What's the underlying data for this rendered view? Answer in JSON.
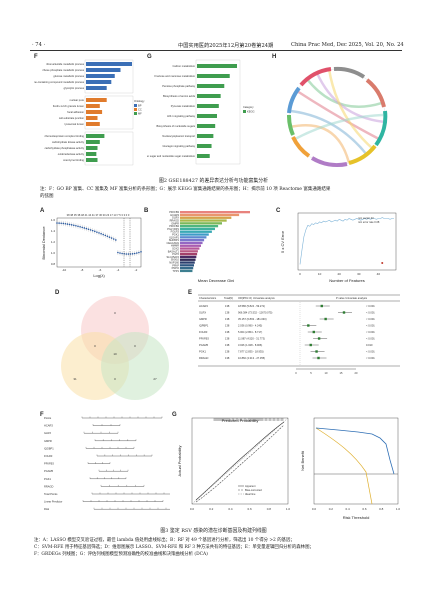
{
  "header": {
    "page_number": "· 74 ·",
    "journal_cn": "中国实用医药2025年12月第20卷第24期",
    "journal_en": "China Prac Med, Dec 2025, Vol. 20, No. 24"
  },
  "figure2": {
    "caption_title": "图2   GSE188427 的差异表达分析与功能富集分析",
    "caption_note_1": "注：F：GO BP 富集、CC 富集及 MF 富集分析的条形图；G：展示 KEGG 富集通路结果的条形图；H：揭示前 10 项 Reactome 富集通路结果",
    "caption_note_2": "的弦图",
    "panels": {
      "F": {
        "letter": "F",
        "legend_title": "Ontology",
        "legend": [
          "BP",
          "CC",
          "MF"
        ],
        "bp_terms": [
          "ribonucleotide metabolic process",
          "ribose phosphate metabolic process",
          "glucose metabolic process",
          "purine-containing compound metabolic process",
          "glycolytic process"
        ],
        "cc_terms": [
          "nuclear pore",
          "ficolin-1-rich granule lumen",
          "focal adhesion",
          "cell-substrate junction",
          "lysosomal lumen"
        ],
        "mf_terms": [
          "ribonucleoprotein complex binding",
          "carbohydrate kinase activity",
          "carbohydrate phosphatase activity",
          "oxidoreductase activity",
          "coenzyme binding"
        ],
        "bp_values": [
          40,
          30,
          25,
          22,
          18
        ],
        "cc_values": [
          18,
          12,
          14,
          10,
          12
        ],
        "mf_values": [
          16,
          12,
          10,
          9,
          10
        ]
      },
      "G": {
        "letter": "G",
        "legend_title": "Category",
        "legend": [
          "KEGG"
        ],
        "terms": [
          "Carbon metabolism",
          "Fructose and mannose metabolism",
          "Pentose phosphate pathway",
          "Biosynthesis of amino acids",
          "Pyruvate metabolism",
          "HIF-1 signaling pathway",
          "Biosynthesis of nucleotide sugars",
          "Nucleocytoplasmic transport",
          "Glucagon signaling pathway",
          "Amino sugar and nucleotide sugar metabolism"
        ],
        "values": [
          22,
          18,
          15,
          13,
          12,
          11,
          10,
          9,
          8,
          7
        ]
      },
      "H": {
        "letter": "H"
      }
    }
  },
  "figure3": {
    "caption_title": "图3   鉴定 RSV 感染的潜在诊断基因及构建列线图",
    "caption_note_1": "注：A：LASSO 模型交叉验证过程，最佳 lambda 值处用虚线标出；B：RF 对 49 个基因进行分析，筛选出 10 个得分 >2 的基因；",
    "caption_note_2": "C：SVM-RFE 用于特征基因筛选；D：维恩图展示 LASSO、SVM-RFE 和 RF 3 种方法共有的特征基因；E：单变量逻辑回归分析的森林图；",
    "caption_note_3": "F：GRDEGs 列线图；G：评估列线图模型预测准确性的校准曲线和决策曲线分析 (DCA)",
    "panels": {
      "A": {
        "letter": "A",
        "top_ticks": "38 38 35 38 48 41 44 41 37 36 30 23 17 13 7 5 3 3 0 0",
        "xlabel": "Log(λ)",
        "ylabel": "Binomial Deviance",
        "x_ticks": [
          "-10",
          "-8",
          "-6",
          "-4",
          "-2"
        ],
        "y_ticks": [
          "1.6",
          "1.4",
          "1.2",
          "1.0",
          "0.8"
        ]
      },
      "B": {
        "letter": "B",
        "xlabel": "Mean Decrease Gini",
        "genes": [
          "PFKFB3",
          "HCAR3",
          "GLRX",
          "RRAGD",
          "GMPR",
          "PFKFB4",
          "PGLYRP1",
          "FOLR3",
          "PGK1",
          "IQGAP1",
          "SHKBP1",
          "CEACAM1",
          "HMMR",
          "SOX2",
          "BASALT1",
          "PGT6",
          "SLC25A15",
          "SNX10",
          "NUP160",
          "PFKP",
          "PNPO",
          "TPP1"
        ],
        "values": [
          9.0,
          7.6,
          6.6,
          6.0,
          5.4,
          4.9,
          4.5,
          4.1,
          3.7,
          3.4,
          3.1,
          2.9,
          2.7,
          2.5,
          2.3,
          2.2,
          2.1,
          2.0,
          1.9,
          1.8,
          1.7,
          1.6
        ]
      },
      "C": {
        "letter": "C",
        "legend_1": "min vector  43",
        "legend_2": "min error rate  0.08",
        "ylabel": "5 x CV Error",
        "xlabel": "Number of Features",
        "x_ticks": [
          "0",
          "10",
          "20",
          "30",
          "40"
        ]
      },
      "D": {
        "letter": "D",
        "labels": [
          "0",
          "0",
          "0",
          "10",
          "31",
          "27",
          "0"
        ]
      },
      "E": {
        "letter": "E",
        "headers": [
          "Characteristics",
          "Total(N)",
          "OR(95% CI) Univariate analysis",
          "P value Univariate analysis"
        ],
        "rows": [
          {
            "gene": "HCAR3",
            "n": "138",
            "or": "18.586 (5.824 - 59.271)",
            "p": "< 0.001"
          },
          {
            "gene": "GLRX",
            "n": "138",
            "or": "966.384 (73.532 - 12670.075)",
            "p": "< 0.001"
          },
          {
            "gene": "GMPR",
            "n": "138",
            "or": "35.157 (6.893 - 181.030)",
            "p": "< 0.001"
          },
          {
            "gene": "IQPBP1",
            "n": "138",
            "or": "2.036 (0.990 - 4.245)",
            "p": "< 0.001"
          },
          {
            "gene": "FOLR3",
            "n": "138",
            "or": "5.004 (2.864 - 8.717)",
            "p": "< 0.001"
          },
          {
            "gene": "PFKFB3",
            "n": "138",
            "or": "11.987 (4.520 - 31.773)",
            "p": "< 0.001"
          },
          {
            "gene": "PGAM5",
            "n": "138",
            "or": "3.026 (1.028 - 8.906)",
            "p": "0.010"
          },
          {
            "gene": "PGK1",
            "n": "138",
            "or": "7.877 (2.835 - 18.935)",
            "p": "< 0.001"
          },
          {
            "gene": "RRAGD",
            "n": "138",
            "or": "10.860 (4.313 - 27.355)",
            "p": "< 0.001"
          }
        ],
        "axis_ticks": [
          "0",
          "5",
          "10",
          "15",
          "20"
        ]
      },
      "F": {
        "letter": "F",
        "rows": [
          "Points",
          "HCAR3",
          "GLRX",
          "GMPR",
          "IQGBP1",
          "FOLR3",
          "PFKFB3",
          "PGAM5",
          "PGK1",
          "RRAGD",
          "Total Points",
          "Linear Predictor",
          "Risk"
        ]
      },
      "G": {
        "letter": "G",
        "xlabel": "Predicted Probability",
        "ylabel": "Actual Probability",
        "legend": [
          "Apparent",
          "Bias-corrected",
          "Ideal line"
        ],
        "x_ticks": [
          "0.0",
          "0.2",
          "0.4",
          "0.6",
          "0.8",
          "1.0"
        ]
      },
      "G2": {
        "xlabel": "Risk Threshold",
        "ylabel": "Net Benefit",
        "x_ticks": [
          "0.0",
          "0.2",
          "0.4",
          "0.6",
          "0.8",
          "1.0"
        ]
      }
    }
  },
  "colors": {
    "bp": "#3b6fb6",
    "cc": "#e07b2c",
    "mf": "#3f9d4f",
    "kegg": "#3f9d4f",
    "lasso_curve": "#2a5aa0",
    "dca_model": "#2f6fb5",
    "dca_all": "#e0b030"
  }
}
